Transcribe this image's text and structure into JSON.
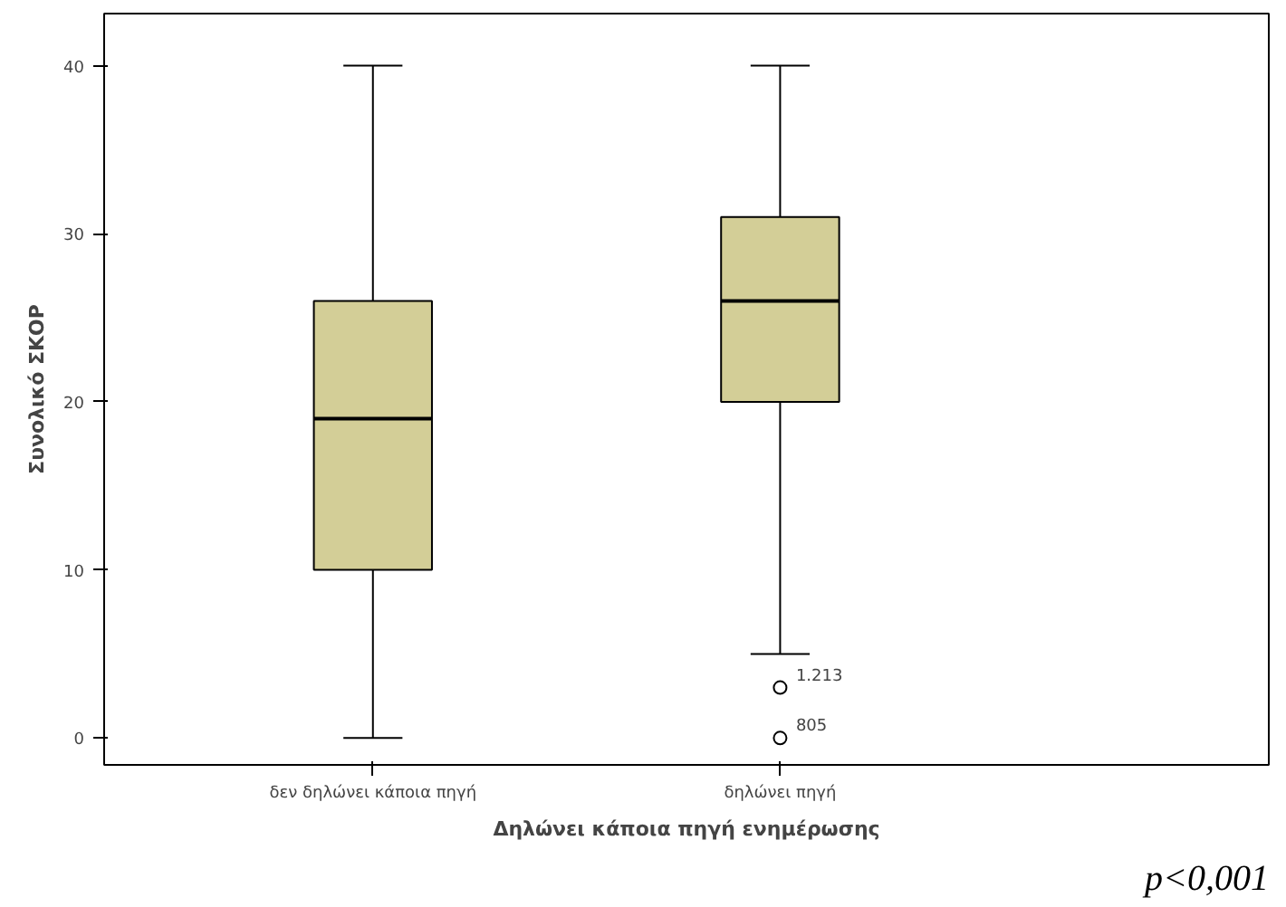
{
  "chart_data": {
    "type": "box",
    "xlabel": "Δηλώνει κάποια πηγή ενημέρωσης",
    "ylabel": "Συνολικό ΣΚΟΡ",
    "categories": [
      "δεν δηλώνει κάποια πηγή",
      "δηλώνει πηγή"
    ],
    "boxes": [
      {
        "low": 0,
        "q1": 10,
        "median": 19,
        "q3": 26,
        "high": 40
      },
      {
        "low": 5,
        "q1": 20,
        "median": 26,
        "q3": 31,
        "high": 40,
        "outliers": [
          3,
          0
        ]
      }
    ],
    "color": "#d3ce97",
    "ylim": [
      -1.6,
      43.1
    ],
    "yticks": [
      0,
      10,
      20,
      30,
      40
    ],
    "grid": false,
    "marker": "circle",
    "annotations": [
      "1.213",
      "805",
      "p<0,001"
    ]
  }
}
